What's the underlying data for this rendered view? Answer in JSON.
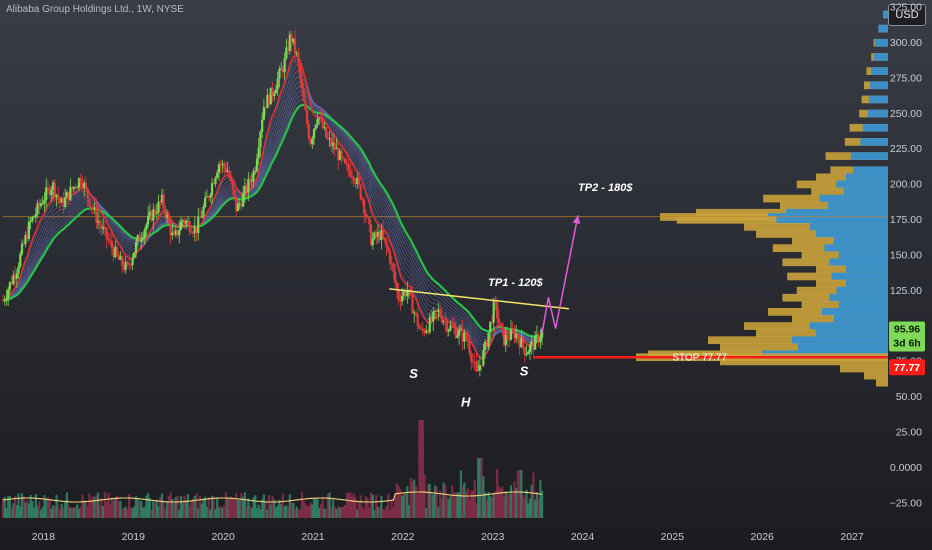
{
  "header": {
    "title": "Alibaba Group Holdings Ltd., 1W, NYSE",
    "currency": "USD"
  },
  "colors": {
    "up": "#7ed957",
    "down": "#e23b3b",
    "ema_slow": "#27c24a",
    "ema_fast": "#e03131",
    "ribbon": "#6f78c8",
    "neckline": "#f5e66a",
    "projection": "#e45ad6",
    "stop": "#ff1a1a",
    "volume_profile": "#c9a23a",
    "volume_profile_value": "#2f8fd6",
    "tp2_line": "#c2802f",
    "volume_ma": "#f3d27a"
  },
  "chart_data": {
    "type": "candlestick",
    "title": "Alibaba Group Holdings Ltd., 1W, NYSE",
    "xlabel": "",
    "ylabel": "",
    "x_range": [
      2017.55,
      2027.4
    ],
    "y_range": [
      -40,
      330
    ],
    "grid": false,
    "x_ticks": [
      "2018",
      "2019",
      "2020",
      "2021",
      "2022",
      "2023",
      "2024",
      "2025",
      "2026",
      "2027"
    ],
    "y_ticks": [
      "325.00",
      "300.00",
      "275.00",
      "250.00",
      "225.00",
      "200.00",
      "175.00",
      "150.00",
      "125.00",
      "100.00",
      "75.00",
      "50.00",
      "25.00",
      "0.0000",
      "−25.00"
    ],
    "price_path": [
      [
        2017.55,
        118
      ],
      [
        2017.7,
        140
      ],
      [
        2017.85,
        172
      ],
      [
        2018.0,
        190
      ],
      [
        2018.1,
        200
      ],
      [
        2018.2,
        185
      ],
      [
        2018.3,
        195
      ],
      [
        2018.42,
        205
      ],
      [
        2018.5,
        190
      ],
      [
        2018.6,
        175
      ],
      [
        2018.72,
        160
      ],
      [
        2018.85,
        145
      ],
      [
        2018.93,
        140
      ],
      [
        2019.05,
        160
      ],
      [
        2019.2,
        178
      ],
      [
        2019.32,
        188
      ],
      [
        2019.45,
        160
      ],
      [
        2019.55,
        175
      ],
      [
        2019.7,
        168
      ],
      [
        2019.85,
        195
      ],
      [
        2019.95,
        215
      ],
      [
        2020.05,
        210
      ],
      [
        2020.15,
        182
      ],
      [
        2020.25,
        195
      ],
      [
        2020.35,
        210
      ],
      [
        2020.45,
        255
      ],
      [
        2020.55,
        265
      ],
      [
        2020.68,
        285
      ],
      [
        2020.75,
        305
      ],
      [
        2020.82,
        290
      ],
      [
        2020.9,
        255
      ],
      [
        2020.97,
        230
      ],
      [
        2021.05,
        250
      ],
      [
        2021.15,
        232
      ],
      [
        2021.25,
        225
      ],
      [
        2021.35,
        212
      ],
      [
        2021.45,
        208
      ],
      [
        2021.55,
        190
      ],
      [
        2021.65,
        160
      ],
      [
        2021.75,
        165
      ],
      [
        2021.85,
        150
      ],
      [
        2021.95,
        120
      ],
      [
        2022.05,
        125
      ],
      [
        2022.2,
        95
      ],
      [
        2022.28,
        100
      ],
      [
        2022.4,
        110
      ],
      [
        2022.5,
        100
      ],
      [
        2022.62,
        95
      ],
      [
        2022.72,
        90
      ],
      [
        2022.82,
        65
      ],
      [
        2022.92,
        85
      ],
      [
        2023.02,
        115
      ],
      [
        2023.12,
        90
      ],
      [
        2023.25,
        95
      ],
      [
        2023.37,
        82
      ],
      [
        2023.47,
        88
      ],
      [
        2023.55,
        96
      ]
    ],
    "series": [
      {
        "name": "",
        "price": 95.96
      },
      {
        "name": "",
        "price": 77.77
      }
    ],
    "price_label": {
      "value": "95.96",
      "countdown": "3d 6h"
    },
    "stop_label": {
      "value": "77.77",
      "text": "STOP 77.77"
    },
    "neckline": [
      [
        2021.85,
        126
      ],
      [
        2023.85,
        112
      ]
    ],
    "projection": [
      [
        2023.55,
        95
      ],
      [
        2023.62,
        120
      ],
      [
        2023.7,
        98
      ],
      [
        2023.95,
        178
      ]
    ],
    "tp1": {
      "text": "TP1 - 120$",
      "x": 2022.95,
      "y": 128
    },
    "tp2": {
      "text": "TP2 - 180$",
      "x": 2023.95,
      "y": 195,
      "line_y": 177
    },
    "pattern_labels": [
      {
        "text": "S",
        "x": 2022.12,
        "y": 63
      },
      {
        "text": "H",
        "x": 2022.7,
        "y": 43
      },
      {
        "text": "S",
        "x": 2023.35,
        "y": 65
      }
    ],
    "volume_profile": [
      [
        320,
        2
      ],
      [
        310,
        4
      ],
      [
        300,
        6
      ],
      [
        290,
        7
      ],
      [
        280,
        9
      ],
      [
        270,
        10
      ],
      [
        260,
        11
      ],
      [
        250,
        12
      ],
      [
        240,
        16
      ],
      [
        230,
        18
      ],
      [
        220,
        26
      ],
      [
        210,
        24
      ],
      [
        205,
        30
      ],
      [
        200,
        38
      ],
      [
        195,
        32
      ],
      [
        190,
        52
      ],
      [
        185,
        45
      ],
      [
        180,
        80
      ],
      [
        177,
        95
      ],
      [
        175,
        88
      ],
      [
        170,
        60
      ],
      [
        165,
        55
      ],
      [
        160,
        40
      ],
      [
        155,
        48
      ],
      [
        150,
        36
      ],
      [
        145,
        44
      ],
      [
        140,
        30
      ],
      [
        135,
        42
      ],
      [
        130,
        30
      ],
      [
        125,
        38
      ],
      [
        120,
        44
      ],
      [
        115,
        36
      ],
      [
        110,
        50
      ],
      [
        105,
        40
      ],
      [
        100,
        60
      ],
      [
        95,
        55
      ],
      [
        90,
        75
      ],
      [
        85,
        70
      ],
      [
        80,
        100
      ],
      [
        78,
        105
      ],
      [
        75,
        70
      ],
      [
        70,
        20
      ],
      [
        65,
        10
      ],
      [
        60,
        5
      ]
    ]
  }
}
